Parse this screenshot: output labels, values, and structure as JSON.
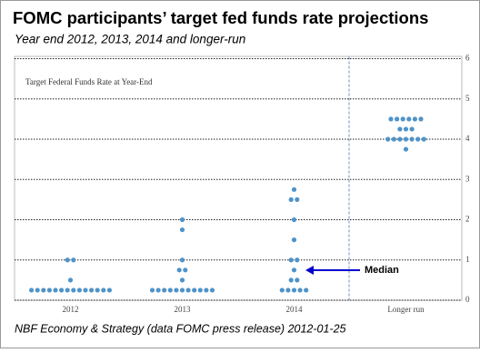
{
  "chart_data": {
    "type": "dot",
    "title": "FOMC participants’ target fed funds rate projections",
    "subtitle": "Year end 2012, 2013, 2014 and longer-run",
    "inner_label": "Target Federal Funds Rate at Year-End",
    "source": "NBF Economy & Strategy (data FOMC press release) 2012-01-25",
    "annotation": "Median",
    "categories": [
      "2012",
      "2013",
      "2014",
      "Longer run"
    ],
    "values": [
      [
        0.25,
        0.25,
        0.25,
        0.25,
        0.25,
        0.25,
        0.25,
        0.25,
        0.25,
        0.25,
        0.25,
        0.25,
        0.25,
        0.25,
        0.5,
        1,
        1
      ],
      [
        0.25,
        0.25,
        0.25,
        0.25,
        0.25,
        0.25,
        0.25,
        0.25,
        0.25,
        0.25,
        0.25,
        0.5,
        0.75,
        0.75,
        1,
        1.75,
        2
      ],
      [
        0.25,
        0.25,
        0.25,
        0.25,
        0.25,
        0.5,
        0.5,
        0.75,
        1,
        1,
        1.5,
        2,
        2.5,
        2.5,
        2.75
      ],
      [
        3.75,
        4,
        4,
        4,
        4,
        4,
        4,
        4,
        4.25,
        4.25,
        4.25,
        4.5,
        4.5,
        4.5,
        4.5,
        4.5,
        4.5
      ]
    ],
    "color": "#4f93c8",
    "ylim": [
      0,
      6
    ],
    "yticks": [
      0,
      1,
      2,
      3,
      4,
      5,
      6
    ],
    "grid": true
  }
}
